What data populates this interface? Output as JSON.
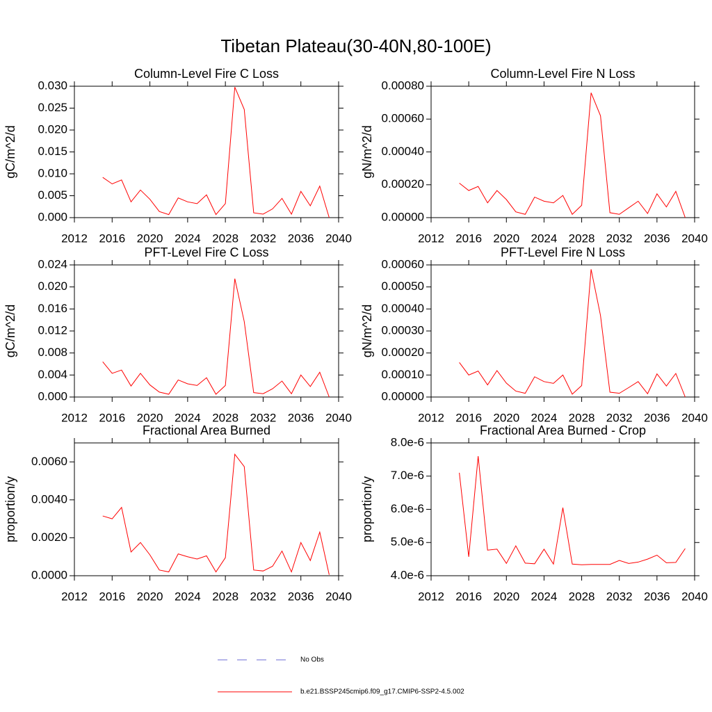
{
  "title": "Tibetan Plateau(30-40N,80-100E)",
  "legend": [
    {
      "name": "No Obs",
      "color": "#6b6bd6",
      "dash": true
    },
    {
      "name": "b.e21.BSSP245cmip6.f09_g17.CMIP6-SSP2-4.5.002",
      "color": "#ff0000",
      "dash": false
    }
  ],
  "chart_data": [
    {
      "type": "line",
      "title": "Column-Level Fire C Loss",
      "y_label": "gC/m^2/d",
      "color": "#ff0000",
      "x": [
        2015,
        2016,
        2017,
        2018,
        2019,
        2020,
        2021,
        2022,
        2023,
        2024,
        2025,
        2026,
        2027,
        2028,
        2029,
        2030,
        2031,
        2032,
        2033,
        2034,
        2035,
        2036,
        2037,
        2038,
        2039
      ],
      "values": [
        0.0092,
        0.0077,
        0.0086,
        0.0036,
        0.0063,
        0.0042,
        0.0014,
        0.0007,
        0.0045,
        0.0036,
        0.0032,
        0.0052,
        0.0007,
        0.0032,
        0.0298,
        0.0247,
        0.0011,
        0.0008,
        0.002,
        0.0044,
        0.0008,
        0.006,
        0.0027,
        0.0072,
        0.0
      ],
      "xlim": [
        2012,
        2040
      ],
      "xticks": [
        2012,
        2016,
        2020,
        2024,
        2028,
        2032,
        2036,
        2040
      ],
      "ylim": [
        0,
        0.03
      ],
      "yticks": [
        {
          "value": 0,
          "label": "0.000"
        },
        {
          "value": 0.005,
          "label": "0.005"
        },
        {
          "value": 0.01,
          "label": "0.010"
        },
        {
          "value": 0.015,
          "label": "0.015"
        },
        {
          "value": 0.02,
          "label": "0.020"
        },
        {
          "value": 0.025,
          "label": "0.025"
        },
        {
          "value": 0.03,
          "label": "0.030"
        }
      ]
    },
    {
      "type": "line",
      "title": "Column-Level Fire N Loss",
      "y_label": "gN/m^2/d",
      "color": "#ff0000",
      "x": [
        2015,
        2016,
        2017,
        2018,
        2019,
        2020,
        2021,
        2022,
        2023,
        2024,
        2025,
        2026,
        2027,
        2028,
        2029,
        2030,
        2031,
        2032,
        2033,
        2034,
        2035,
        2036,
        2037,
        2038,
        2039
      ],
      "values": [
        0.00021,
        0.000165,
        0.00019,
        9e-05,
        0.000165,
        0.00011,
        3.5e-05,
        2e-05,
        0.000125,
        0.0001,
        9e-05,
        0.000135,
        2e-05,
        7.5e-05,
        0.00076,
        0.00062,
        3e-05,
        2e-05,
        6e-05,
        0.0001,
        2.5e-05,
        0.000145,
        6.5e-05,
        0.00016,
        0.0
      ],
      "xlim": [
        2012,
        2040
      ],
      "xticks": [
        2012,
        2016,
        2020,
        2024,
        2028,
        2032,
        2036,
        2040
      ],
      "ylim": [
        0,
        0.0008
      ],
      "yticks": [
        {
          "value": 0,
          "label": "0.00000"
        },
        {
          "value": 0.0002,
          "label": "0.00020"
        },
        {
          "value": 0.0004,
          "label": "0.00040"
        },
        {
          "value": 0.0006,
          "label": "0.00060"
        },
        {
          "value": 0.0008,
          "label": "0.00080"
        }
      ]
    },
    {
      "type": "line",
      "title": "PFT-Level Fire C Loss",
      "y_label": "gC/m^2/d",
      "color": "#ff0000",
      "x": [
        2015,
        2016,
        2017,
        2018,
        2019,
        2020,
        2021,
        2022,
        2023,
        2024,
        2025,
        2026,
        2027,
        2028,
        2029,
        2030,
        2031,
        2032,
        2033,
        2034,
        2035,
        2036,
        2037,
        2038,
        2039
      ],
      "values": [
        0.0064,
        0.0043,
        0.0049,
        0.002,
        0.0043,
        0.0022,
        0.0009,
        0.0005,
        0.0031,
        0.0024,
        0.0021,
        0.0035,
        0.0005,
        0.0021,
        0.0215,
        0.0137,
        0.0008,
        0.0006,
        0.0015,
        0.0029,
        0.0006,
        0.004,
        0.0019,
        0.0045,
        0.0
      ],
      "xlim": [
        2012,
        2040
      ],
      "xticks": [
        2012,
        2016,
        2020,
        2024,
        2028,
        2032,
        2036,
        2040
      ],
      "ylim": [
        0,
        0.024
      ],
      "yticks": [
        {
          "value": 0,
          "label": "0.000"
        },
        {
          "value": 0.004,
          "label": "0.004"
        },
        {
          "value": 0.008,
          "label": "0.008"
        },
        {
          "value": 0.012,
          "label": "0.012"
        },
        {
          "value": 0.016,
          "label": "0.016"
        },
        {
          "value": 0.02,
          "label": "0.020"
        },
        {
          "value": 0.024,
          "label": "0.024"
        }
      ]
    },
    {
      "type": "line",
      "title": "PFT-Level Fire N Loss",
      "y_label": "gN/m^2/d",
      "color": "#ff0000",
      "x": [
        2015,
        2016,
        2017,
        2018,
        2019,
        2020,
        2021,
        2022,
        2023,
        2024,
        2025,
        2026,
        2027,
        2028,
        2029,
        2030,
        2031,
        2032,
        2033,
        2034,
        2035,
        2036,
        2037,
        2038,
        2039
      ],
      "values": [
        0.000157,
        0.0001,
        0.000118,
        5.5e-05,
        0.00012,
        6.3e-05,
        2.7e-05,
        1.7e-05,
        9.2e-05,
        7e-05,
        6.2e-05,
        0.0001,
        1.3e-05,
        5.2e-05,
        0.00058,
        0.00037,
        2.2e-05,
        1.7e-05,
        4.3e-05,
        7e-05,
        1.5e-05,
        0.000105,
        5e-05,
        0.000107,
        0.0
      ],
      "xlim": [
        2012,
        2040
      ],
      "xticks": [
        2012,
        2016,
        2020,
        2024,
        2028,
        2032,
        2036,
        2040
      ],
      "ylim": [
        0,
        0.0006
      ],
      "yticks": [
        {
          "value": 0,
          "label": "0.00000"
        },
        {
          "value": 0.0001,
          "label": "0.00010"
        },
        {
          "value": 0.0002,
          "label": "0.00020"
        },
        {
          "value": 0.0003,
          "label": "0.00030"
        },
        {
          "value": 0.0004,
          "label": "0.00040"
        },
        {
          "value": 0.0005,
          "label": "0.00050"
        },
        {
          "value": 0.0006,
          "label": "0.00060"
        }
      ]
    },
    {
      "type": "line",
      "title": "Fractional Area Burned",
      "y_label": "proportion/y",
      "color": "#ff0000",
      "x": [
        2015,
        2016,
        2017,
        2018,
        2019,
        2020,
        2021,
        2022,
        2023,
        2024,
        2025,
        2026,
        2027,
        2028,
        2029,
        2030,
        2031,
        2032,
        2033,
        2034,
        2035,
        2036,
        2037,
        2038,
        2039
      ],
      "values": [
        0.00315,
        0.003,
        0.0036,
        0.00125,
        0.00175,
        0.0011,
        0.0003,
        0.0002,
        0.00115,
        0.001,
        0.00088,
        0.00105,
        0.0002,
        0.00095,
        0.0064,
        0.00575,
        0.0003,
        0.00025,
        0.0005,
        0.0013,
        0.0002,
        0.00175,
        0.0008,
        0.0023,
        5e-05
      ],
      "xlim": [
        2012,
        2040
      ],
      "xticks": [
        2012,
        2016,
        2020,
        2024,
        2028,
        2032,
        2036,
        2040
      ],
      "ylim": [
        0,
        0.007
      ],
      "yticks": [
        {
          "value": 0,
          "label": "0.0000"
        },
        {
          "value": 0.002,
          "label": "0.0020"
        },
        {
          "value": 0.004,
          "label": "0.0040"
        },
        {
          "value": 0.006,
          "label": "0.0060"
        }
      ]
    },
    {
      "type": "line",
      "title": "Fractional Area Burned - Crop",
      "y_label": "proportion/y",
      "color": "#ff0000",
      "x": [
        2015,
        2016,
        2017,
        2018,
        2019,
        2020,
        2021,
        2022,
        2023,
        2024,
        2025,
        2026,
        2027,
        2028,
        2029,
        2030,
        2031,
        2032,
        2033,
        2034,
        2035,
        2036,
        2037,
        2038,
        2039
      ],
      "values": [
        7.1e-06,
        4.57e-06,
        7.6e-06,
        4.77e-06,
        4.8e-06,
        4.37e-06,
        4.9e-06,
        4.38e-06,
        4.36e-06,
        4.8e-06,
        4.35e-06,
        6.05e-06,
        4.35e-06,
        4.33e-06,
        4.34e-06,
        4.34e-06,
        4.34e-06,
        4.46e-06,
        4.37e-06,
        4.41e-06,
        4.5e-06,
        4.62e-06,
        4.39e-06,
        4.4e-06,
        4.82e-06
      ],
      "xlim": [
        2012,
        2040
      ],
      "xticks": [
        2012,
        2016,
        2020,
        2024,
        2028,
        2032,
        2036,
        2040
      ],
      "ylim": [
        4e-06,
        8e-06
      ],
      "yticks": [
        {
          "value": 4e-06,
          "label": "4.0e-6"
        },
        {
          "value": 5e-06,
          "label": "5.0e-6"
        },
        {
          "value": 6e-06,
          "label": "6.0e-6"
        },
        {
          "value": 7e-06,
          "label": "7.0e-6"
        },
        {
          "value": 8e-06,
          "label": "8.0e-6"
        }
      ]
    }
  ]
}
